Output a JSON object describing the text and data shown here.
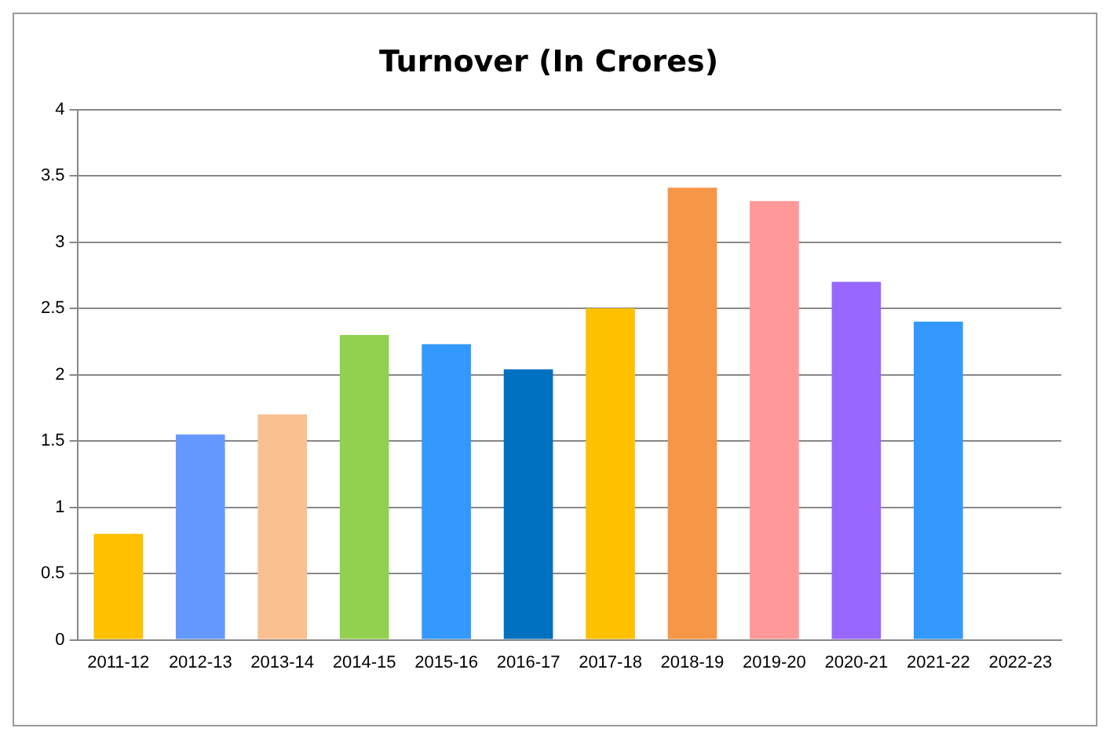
{
  "chart_data": {
    "type": "bar",
    "title": "Turnover (In Crores)",
    "categories": [
      "2011-12",
      "2012-13",
      "2013-14",
      "2014-15",
      "2015-16",
      "2016-17",
      "2017-18",
      "2018-19",
      "2019-20",
      "2020-21",
      "2021-22",
      "2022-23"
    ],
    "values": [
      0.8,
      1.55,
      1.7,
      2.3,
      2.23,
      2.04,
      2.5,
      3.41,
      3.31,
      2.7,
      2.4,
      null
    ],
    "colors": [
      "#ffc000",
      "#6699ff",
      "#fac090",
      "#92d050",
      "#3399ff",
      "#0070c0",
      "#ffc000",
      "#f79646",
      "#ff9999",
      "#9966ff",
      "#3399ff",
      "#3399ff"
    ],
    "ylim": [
      0,
      4
    ],
    "yticks": [
      0,
      0.5,
      1,
      1.5,
      2,
      2.5,
      3,
      3.5,
      4
    ],
    "grid": "y",
    "legend": false
  }
}
